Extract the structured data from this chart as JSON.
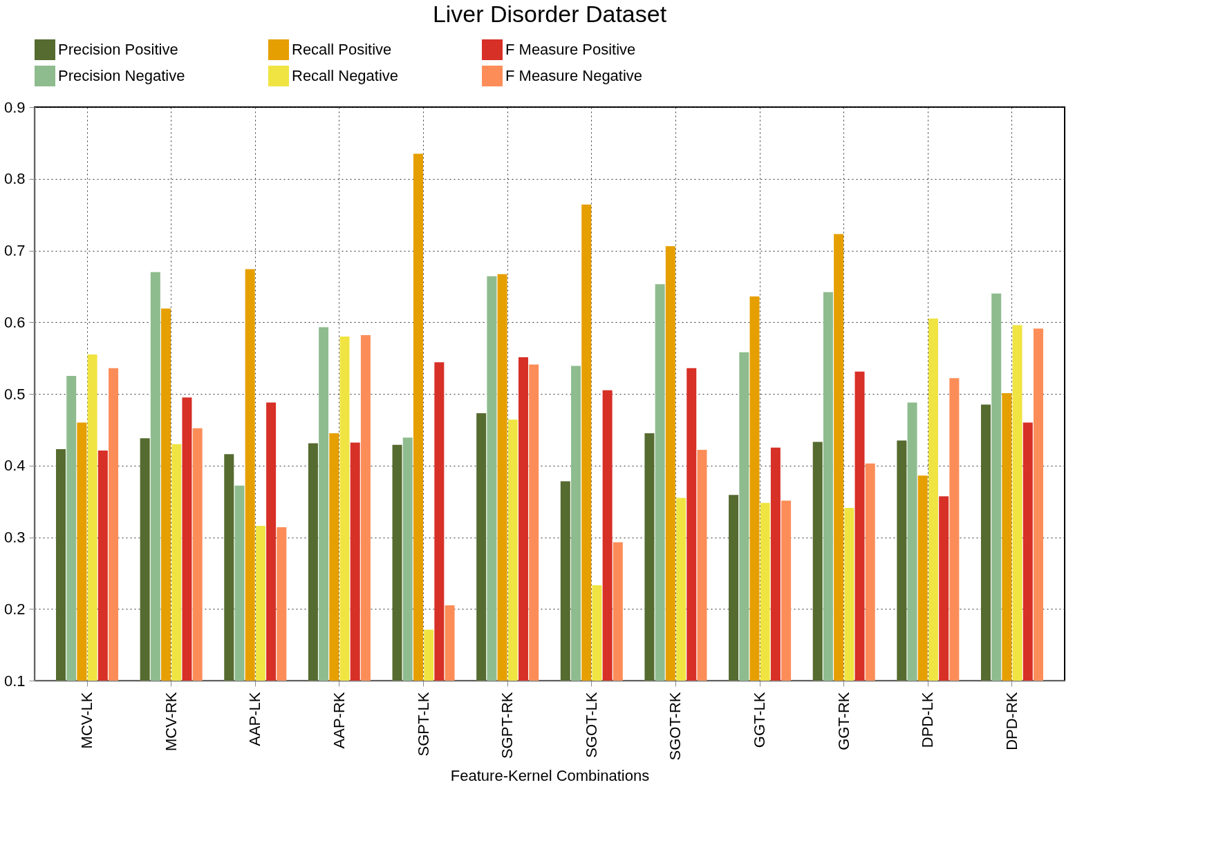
{
  "chart_data": {
    "type": "bar",
    "title": "Liver Disorder Dataset",
    "xlabel": "Feature-Kernel Combinations",
    "categories": [
      "MCV-LK",
      "MCV-RK",
      "AAP-LK",
      "AAP-RK",
      "SGPT-LK",
      "SGPT-RK",
      "SGOT-LK",
      "SGOT-RK",
      "GGT-LK",
      "GGT-RK",
      "DPD-LK",
      "DPD-RK"
    ],
    "series": [
      {
        "name": "Precision Positive",
        "color": "#556b2f",
        "values": [
          0.423,
          0.438,
          0.416,
          0.431,
          0.429,
          0.473,
          0.378,
          0.445,
          0.359,
          0.433,
          0.435,
          0.485
        ]
      },
      {
        "name": "Precision Negative",
        "color": "#8fbc8f",
        "values": [
          0.525,
          0.67,
          0.372,
          0.593,
          0.439,
          0.664,
          0.539,
          0.653,
          0.558,
          0.642,
          0.488,
          0.64
        ]
      },
      {
        "name": "Recall Positive",
        "color": "#e69f00",
        "values": [
          0.46,
          0.619,
          0.674,
          0.445,
          0.835,
          0.667,
          0.764,
          0.706,
          0.636,
          0.723,
          0.386,
          0.501
        ]
      },
      {
        "name": "Recall Negative",
        "color": "#f0e442",
        "values": [
          0.555,
          0.43,
          0.316,
          0.58,
          0.171,
          0.464,
          0.233,
          0.355,
          0.348,
          0.341,
          0.605,
          0.596
        ]
      },
      {
        "name": "F Measure Positive",
        "color": "#d73027",
        "values": [
          0.421,
          0.495,
          0.488,
          0.432,
          0.544,
          0.551,
          0.505,
          0.536,
          0.425,
          0.531,
          0.357,
          0.46
        ]
      },
      {
        "name": "F Measure Negative",
        "color": "#fc8d59",
        "values": [
          0.536,
          0.452,
          0.314,
          0.582,
          0.205,
          0.541,
          0.293,
          0.422,
          0.351,
          0.403,
          0.522,
          0.591
        ]
      }
    ],
    "ylim": [
      0.1,
      0.9
    ],
    "yticks": [
      0.1,
      0.2,
      0.3,
      0.4,
      0.5,
      0.6,
      0.7,
      0.8,
      0.9
    ],
    "grid": true,
    "legend": "top"
  }
}
